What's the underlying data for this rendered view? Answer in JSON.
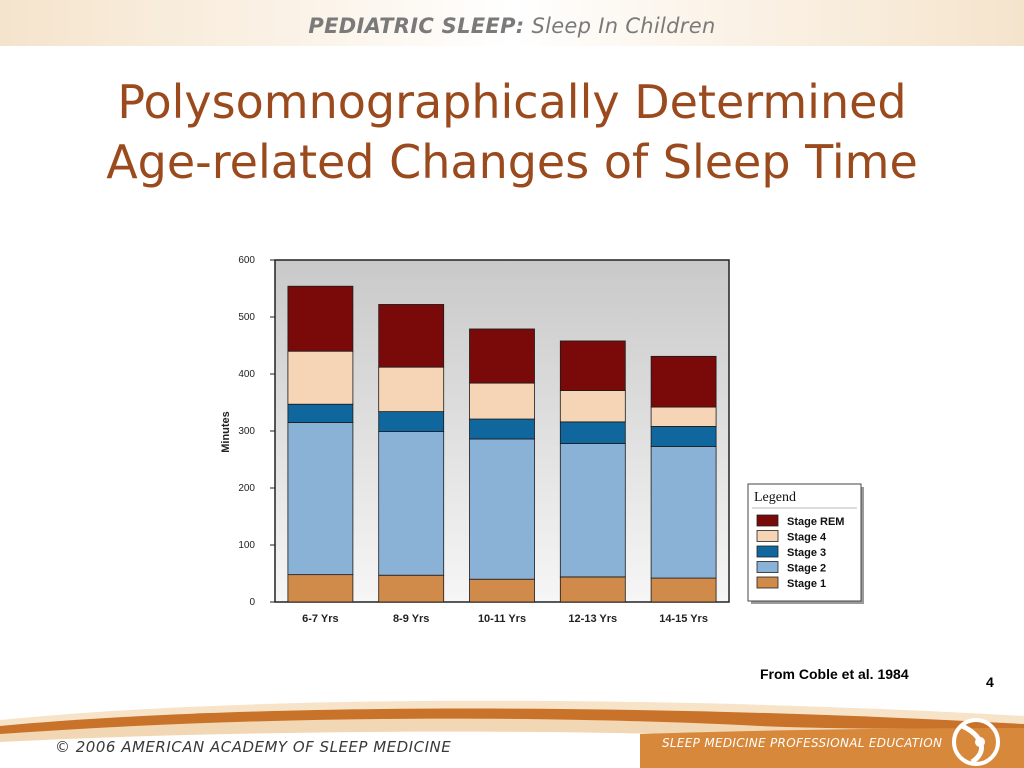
{
  "header": {
    "bold_part": "PEDIATRIC SLEEP:",
    "rest": " Sleep In Children"
  },
  "title": {
    "line1": "Polysomnographically Determined",
    "line2": "Age-related Changes of Sleep Time"
  },
  "chart_data": {
    "type": "bar",
    "stacked": true,
    "categories": [
      "6-7 Yrs",
      "8-9 Yrs",
      "10-11 Yrs",
      "12-13 Yrs",
      "14-15 Yrs"
    ],
    "series": [
      {
        "name": "Stage 1",
        "color": "#d08a4a",
        "values": [
          48,
          47,
          40,
          44,
          42
        ]
      },
      {
        "name": "Stage 2",
        "color": "#8ab2d6",
        "values": [
          267,
          252,
          246,
          234,
          231
        ]
      },
      {
        "name": "Stage 3",
        "color": "#10679e",
        "values": [
          32,
          35,
          35,
          38,
          35
        ]
      },
      {
        "name": "Stage 4",
        "color": "#f5d5b5",
        "values": [
          93,
          78,
          63,
          55,
          34
        ]
      },
      {
        "name": "Stage REM",
        "color": "#7a0a0a",
        "values": [
          114,
          110,
          95,
          87,
          89
        ]
      }
    ],
    "ylabel": "Minutes",
    "ylim": [
      0,
      600
    ],
    "yticks": [
      0,
      100,
      200,
      300,
      400,
      500,
      600
    ],
    "legend_title": "Legend",
    "legend_position": "right",
    "legend_order": [
      "Stage REM",
      "Stage 4",
      "Stage 3",
      "Stage 2",
      "Stage 1"
    ],
    "background": "gradient gray"
  },
  "citation": "From Coble et al. 1984",
  "page_number": "4",
  "footer": {
    "left": "© 2006  AMERICAN ACADEMY OF SLEEP MEDICINE",
    "right": "SLEEP MEDICINE PROFESSIONAL EDUCATION"
  },
  "colors": {
    "title": "#9a4a1c",
    "footer_band": "#c8722a",
    "header_band": "#f5e4cc"
  }
}
